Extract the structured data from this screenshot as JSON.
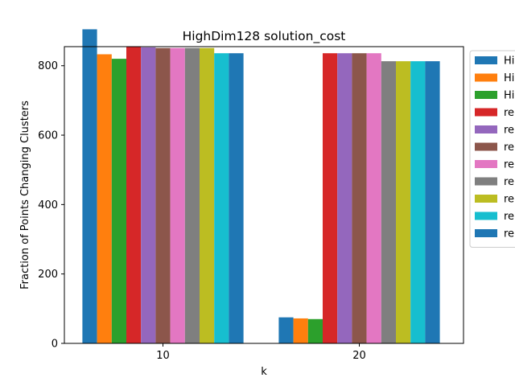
{
  "chart_data": {
    "type": "bar",
    "title": "HighDim128 solution_cost",
    "xlabel": "k",
    "ylabel": "Fraction of Points Changing Clusters",
    "categories": [
      "10",
      "20"
    ],
    "ylim": [
      0,
      855
    ],
    "yticks": [
      0,
      200,
      400,
      600,
      800
    ],
    "grid": false,
    "legend_position": "right, outside plot",
    "series": [
      {
        "name": "Hi",
        "color": "#1f77b4",
        "values": [
          905,
          75
        ]
      },
      {
        "name": "Hi",
        "color": "#ff7f0e",
        "values": [
          833,
          72
        ]
      },
      {
        "name": "Hi",
        "color": "#2ca02c",
        "values": [
          820,
          70
        ]
      },
      {
        "name": "re",
        "color": "#d62728",
        "values": [
          856,
          836
        ]
      },
      {
        "name": "re",
        "color": "#9467bd",
        "values": [
          853,
          836
        ]
      },
      {
        "name": "re",
        "color": "#8c564b",
        "values": [
          851,
          836
        ]
      },
      {
        "name": "re",
        "color": "#e377c2",
        "values": [
          851,
          836
        ]
      },
      {
        "name": "re",
        "color": "#7f7f7f",
        "values": [
          851,
          813
        ]
      },
      {
        "name": "re",
        "color": "#bcbd22",
        "values": [
          851,
          813
        ]
      },
      {
        "name": "re",
        "color": "#17becf",
        "values": [
          836,
          813
        ]
      },
      {
        "name": "re",
        "color": "#1f77b4",
        "values": [
          836,
          813
        ]
      }
    ]
  }
}
